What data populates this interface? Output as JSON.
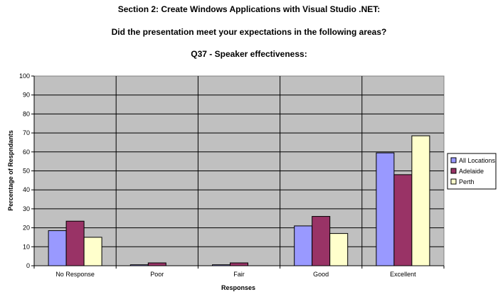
{
  "chart_data": {
    "type": "bar",
    "title": "Section 2: Create Windows Applications with Visual Studio .NET:",
    "subtitle": "Did the presentation meet your expectations in the following areas?",
    "question": "Q37 - Speaker effectiveness:",
    "xlabel": "Responses",
    "ylabel": "Percentage of Respndants",
    "categories": [
      "No Response",
      "Poor",
      "Fair",
      "Good",
      "Excellent"
    ],
    "ylim": [
      0,
      100
    ],
    "yticks": [
      0,
      10,
      20,
      30,
      40,
      50,
      60,
      70,
      80,
      90,
      100
    ],
    "grid": true,
    "legend_position": "right",
    "series": [
      {
        "name": "All Locations",
        "color": "#9999ff",
        "values": [
          18.5,
          0.5,
          0.5,
          21,
          59.5
        ]
      },
      {
        "name": "Adelaide",
        "color": "#993366",
        "values": [
          23.5,
          1.5,
          1.5,
          26,
          48
        ]
      },
      {
        "name": "Perth",
        "color": "#ffffcc",
        "values": [
          15,
          0,
          0,
          17,
          68.5
        ]
      }
    ],
    "plot_background": "#c0c0c0"
  }
}
